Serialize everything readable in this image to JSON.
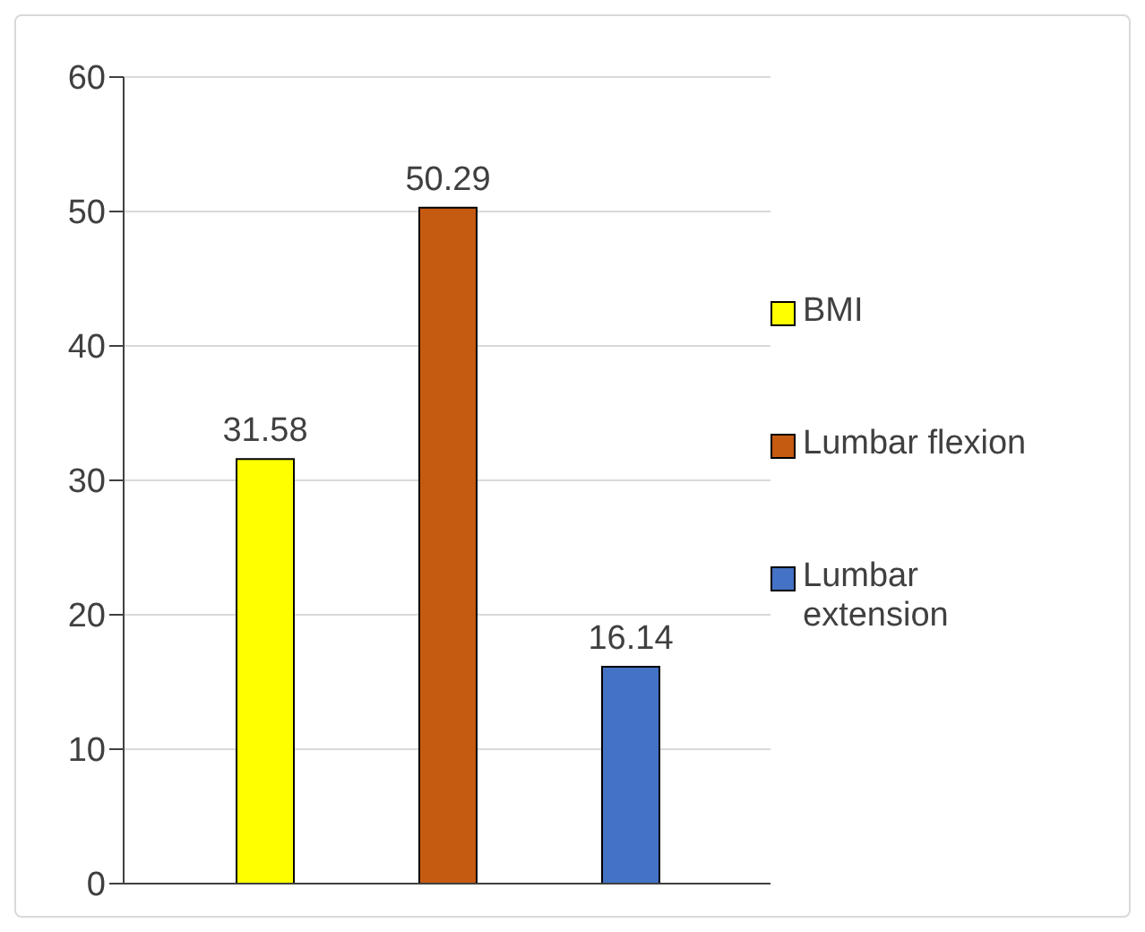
{
  "chart_data": {
    "type": "bar",
    "categories": [
      null
    ],
    "series": [
      {
        "name": "BMI",
        "color": "#ffff00",
        "values": [
          31.58
        ]
      },
      {
        "name": "Lumbar flexion",
        "color": "#c55a11",
        "values": [
          50.29
        ]
      },
      {
        "name": "Lumbar extension",
        "color": "#4472c4",
        "values": [
          16.14
        ]
      }
    ],
    "ylim": [
      0,
      60
    ],
    "yticks": [
      0,
      10,
      20,
      30,
      40,
      50,
      60
    ],
    "grid": "y",
    "legend": "right",
    "data_labels": true
  }
}
